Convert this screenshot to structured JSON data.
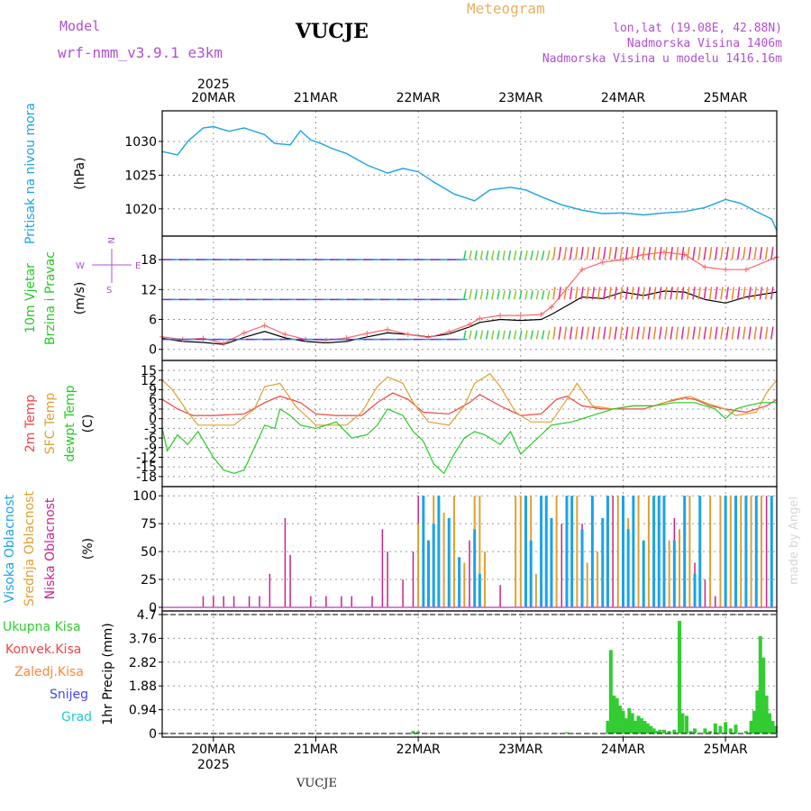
{
  "header": {
    "model_label": "Model",
    "model_name": "wrf-nmm_v3.9.1 e3km",
    "station": "VUCJE",
    "app_title": "Meteogram",
    "lonlat": "lon,lat (19.08E, 42.88N)",
    "altitude": "Nadmorska Visina 1406m",
    "model_altitude": "Nadmorska Visina u modelu 1416.16m",
    "footer_station": "VUCJE",
    "watermark": "made by Angel",
    "year": "2025"
  },
  "colors": {
    "pressure": "#1aa3e8",
    "wind": "#22cc22",
    "gust": "#ff6666",
    "temp2m": "#ee4444",
    "sfc": "#e0a030",
    "dew": "#22cc22",
    "high": "#1aa3e8",
    "mid": "#e0a030",
    "low": "#cc2288",
    "precip": "#33cc33",
    "conv": "#ee4444",
    "ice": "#ff8833",
    "snow": "#4444ee",
    "hail": "#22cccc",
    "purple": "#b050d0"
  },
  "chart_data": {
    "type": "meteogram",
    "x_axis": {
      "unit": "day",
      "range": [
        -0.5,
        5.5
      ],
      "top_labels": [
        "20MAR",
        "21MAR",
        "22MAR",
        "23MAR",
        "24MAR",
        "25MAR"
      ],
      "bottom_labels": [
        "20MAR",
        "21MAR",
        "22MAR",
        "23MAR",
        "24MAR",
        "25MAR"
      ],
      "positions": [
        0,
        1,
        2,
        3,
        4,
        5
      ]
    },
    "panels": [
      {
        "id": "pressure",
        "ylabels": [
          "Pritisak na nivou mora",
          "(hPa)"
        ],
        "ylim": [
          1016.5,
          1034
        ],
        "yticks": [
          1020,
          1025,
          1030
        ],
        "series": [
          {
            "name": "MSLP",
            "x": [
              -0.5,
              -0.35,
              -0.25,
              -0.1,
              0,
              0.15,
              0.3,
              0.5,
              0.6,
              0.75,
              0.85,
              0.95,
              1.05,
              1.15,
              1.3,
              1.5,
              1.7,
              1.85,
              2.0,
              2.15,
              2.35,
              2.55,
              2.7,
              2.9,
              3.05,
              3.2,
              3.4,
              3.6,
              3.8,
              4.0,
              4.2,
              4.4,
              4.6,
              4.8,
              5.0,
              5.15,
              5.3,
              5.45,
              5.5
            ],
            "y": [
              1028.5,
              1028,
              1030,
              1032,
              1032.2,
              1031.5,
              1032,
              1031,
              1029.7,
              1029.5,
              1031.6,
              1030.2,
              1029.7,
              1029,
              1028.2,
              1026.5,
              1025.3,
              1026,
              1025.5,
              1024,
              1022.2,
              1021.2,
              1022.8,
              1023.2,
              1022.8,
              1021.8,
              1020.6,
              1019.8,
              1019.3,
              1019.4,
              1019.1,
              1019.4,
              1019.6,
              1020.2,
              1021.4,
              1020.8,
              1019.6,
              1018.5,
              1016.8
            ]
          }
        ]
      },
      {
        "id": "wind",
        "ylabels": [
          "10m Vjetar",
          "Brzina i Pravac",
          "(m/s)"
        ],
        "ylim": [
          -1.5,
          22
        ],
        "yticks": [
          0,
          6,
          12,
          18
        ],
        "compass": [
          "N",
          "E",
          "S",
          "W"
        ],
        "series": [
          {
            "name": "wind_speed",
            "x": [
              -0.5,
              -0.3,
              -0.1,
              0.1,
              0.3,
              0.5,
              0.7,
              0.9,
              1.1,
              1.3,
              1.5,
              1.7,
              1.9,
              2.1,
              2.3,
              2.5,
              2.6,
              2.8,
              3.0,
              3.2,
              3.3,
              3.6,
              3.8,
              4.0,
              4.2,
              4.4,
              4.6,
              4.8,
              5.0,
              5.2,
              5.5
            ],
            "y": [
              2.2,
              1.6,
              1.4,
              1.0,
              2.4,
              3.6,
              2.3,
              1.6,
              1.3,
              1.6,
              2.5,
              3.3,
              3.0,
              2.5,
              3.1,
              4.5,
              5.4,
              6.0,
              5.8,
              6.0,
              7.0,
              10.5,
              10.2,
              11.5,
              10.8,
              11.7,
              11.5,
              10.0,
              9.3,
              10.5,
              11.5
            ]
          },
          {
            "name": "gust",
            "x": [
              -0.5,
              -0.3,
              -0.1,
              0.1,
              0.3,
              0.5,
              0.7,
              0.9,
              1.1,
              1.3,
              1.5,
              1.7,
              1.9,
              2.1,
              2.3,
              2.5,
              2.6,
              2.8,
              3.0,
              3.2,
              3.3,
              3.6,
              3.8,
              4.0,
              4.2,
              4.4,
              4.6,
              4.8,
              5.0,
              5.2,
              5.5
            ],
            "y": [
              2.5,
              2.0,
              2.2,
              1.2,
              3.3,
              4.8,
              3.0,
              2.0,
              1.8,
              2.3,
              3.2,
              4.0,
              3.0,
              2.4,
              3.5,
              5.0,
              6.2,
              6.8,
              6.8,
              7.0,
              8.5,
              16.0,
              17.5,
              18.0,
              19.0,
              19.5,
              19.0,
              16.5,
              16.0,
              16.0,
              18.5
            ]
          }
        ]
      },
      {
        "id": "temperature",
        "ylabels": [
          "2m Temp",
          "SFC Temp",
          "dewpt Temp",
          "(C)"
        ],
        "ylim": [
          -20,
          17
        ],
        "yticks": [
          -18,
          -15,
          -12,
          -9,
          -6,
          -3,
          0,
          3,
          6,
          9,
          12,
          15
        ],
        "series": [
          {
            "name": "2m Temp",
            "x": [
              -0.5,
              -0.35,
              -0.2,
              0,
              0.3,
              0.5,
              0.65,
              0.85,
              1.0,
              1.2,
              1.45,
              1.6,
              1.75,
              1.9,
              2.05,
              2.3,
              2.5,
              2.6,
              2.8,
              3.0,
              3.2,
              3.35,
              3.45,
              3.6,
              3.8,
              4.0,
              4.2,
              4.4,
              4.6,
              4.7,
              4.85,
              5.0,
              5.2,
              5.4,
              5.5
            ],
            "y": [
              6,
              3,
              1,
              1,
              1.5,
              5,
              7,
              5,
              1.5,
              1,
              1,
              5,
              8,
              6,
              2,
              1.5,
              5,
              7.5,
              4,
              1,
              1.5,
              6,
              7,
              4,
              3,
              3,
              3,
              5,
              6.5,
              6,
              4,
              3,
              2,
              4,
              6
            ]
          },
          {
            "name": "SFC Temp",
            "x": [
              -0.5,
              -0.4,
              -0.25,
              -0.15,
              0,
              0.2,
              0.4,
              0.5,
              0.65,
              0.8,
              1.0,
              1.1,
              1.3,
              1.45,
              1.6,
              1.7,
              1.85,
              1.95,
              2.1,
              2.3,
              2.45,
              2.55,
              2.7,
              2.8,
              2.95,
              3.1,
              3.3,
              3.45,
              3.55,
              3.7,
              3.9,
              4.1,
              4.3,
              4.5,
              4.65,
              4.8,
              5.0,
              5.1,
              5.3,
              5.4,
              5.5
            ],
            "y": [
              12,
              9,
              2,
              -2,
              -2,
              -2,
              3,
              10,
              11,
              4,
              -2,
              -2,
              -2,
              2,
              10,
              13,
              11,
              5,
              -1,
              -2,
              4,
              11,
              14,
              10,
              2,
              -1,
              -1,
              6,
              11,
              4,
              3,
              4,
              4,
              6,
              7,
              5,
              3,
              1,
              2,
              8,
              12
            ]
          },
          {
            "name": "dewpt Temp",
            "x": [
              -0.5,
              -0.45,
              -0.35,
              -0.25,
              -0.15,
              0,
              0.1,
              0.2,
              0.3,
              0.4,
              0.5,
              0.6,
              0.65,
              0.75,
              0.85,
              1.0,
              1.2,
              1.35,
              1.5,
              1.6,
              1.7,
              1.85,
              1.95,
              2.05,
              2.15,
              2.25,
              2.35,
              2.45,
              2.55,
              2.65,
              2.8,
              2.9,
              3.0,
              3.1,
              3.2,
              3.3,
              3.5,
              3.7,
              3.9,
              4.1,
              4.3,
              4.5,
              4.7,
              4.9,
              5.0,
              5.1,
              5.2,
              5.35,
              5.5
            ],
            "y": [
              -3,
              -10,
              -5,
              -8,
              -4,
              -12,
              -16,
              -17,
              -16,
              -9,
              -2,
              -3,
              3,
              1,
              -2,
              -3,
              -1,
              -6,
              -5,
              -2,
              3,
              1,
              -4,
              -7,
              -14,
              -17,
              -11,
              -6,
              -4,
              -5,
              -8,
              -4,
              -11,
              -8,
              -5,
              -2,
              -1,
              1,
              3,
              4,
              4,
              5,
              5,
              3,
              0,
              3,
              4,
              5,
              5
            ]
          }
        ]
      },
      {
        "id": "clouds",
        "ylabels": [
          "Visoka Oblacnost",
          "Srednja Oblacnost",
          "Niska Oblacnost",
          "(%)"
        ],
        "ylim": [
          0,
          105
        ],
        "yticks": [
          0,
          25,
          50,
          75,
          100
        ],
        "low_bars": {
          "x": [
            -0.1,
            0,
            0.1,
            0.2,
            0.35,
            0.45,
            0.55,
            0.7,
            0.75,
            0.95,
            1.1,
            1.25,
            1.35,
            1.55,
            1.65,
            1.7,
            1.85,
            1.95,
            2.0,
            2.5,
            2.6,
            2.8,
            3.1,
            3.2,
            3.4,
            3.5,
            3.6,
            3.7,
            3.8,
            3.9,
            4.0,
            4.1,
            4.2,
            4.4,
            4.5,
            4.6,
            4.7,
            4.8,
            4.9,
            5.0,
            5.1,
            5.2,
            5.3,
            5.4
          ],
          "values": [
            10,
            10,
            10,
            10,
            10,
            10,
            30,
            80,
            47,
            10,
            10,
            10,
            10,
            10,
            70,
            50,
            25,
            50,
            100,
            60,
            30,
            20,
            45,
            60,
            75,
            30,
            75,
            40,
            20,
            100,
            60,
            20,
            30,
            70,
            80,
            100,
            40,
            25,
            10,
            15,
            100,
            80,
            60,
            100
          ]
        },
        "mid_bars": {
          "x": [
            2.0,
            2.05,
            2.1,
            2.15,
            2.25,
            2.35,
            2.45,
            2.55,
            2.6,
            2.65,
            2.95,
            3.0,
            3.05,
            3.1,
            3.15,
            3.35,
            3.45,
            3.55,
            3.65,
            3.75,
            3.85,
            3.95,
            4.05,
            4.15,
            4.25,
            4.35,
            4.45,
            4.55,
            4.65,
            4.75,
            4.85,
            4.95,
            5.05,
            5.15,
            5.25,
            5.35,
            5.45
          ],
          "values": [
            75,
            100,
            60,
            100,
            85,
            100,
            40,
            100,
            100,
            50,
            100,
            100,
            100,
            100,
            30,
            100,
            100,
            100,
            40,
            50,
            100,
            100,
            80,
            100,
            100,
            100,
            60,
            70,
            100,
            40,
            100,
            100,
            100,
            100,
            100,
            100,
            100
          ]
        },
        "high_bars": {
          "x": [
            2.05,
            2.1,
            2.15,
            2.2,
            2.3,
            2.4,
            2.55,
            2.6,
            3.05,
            3.1,
            3.2,
            3.25,
            3.3,
            3.45,
            3.5,
            3.6,
            3.7,
            3.8,
            3.85,
            4.0,
            4.05,
            4.1,
            4.2,
            4.3,
            4.35,
            4.4,
            4.5,
            4.6,
            4.7,
            4.75,
            5.0,
            5.1,
            5.2,
            5.3,
            5.45
          ],
          "values": [
            100,
            60,
            75,
            100,
            80,
            45,
            70,
            30,
            100,
            60,
            100,
            100,
            80,
            100,
            100,
            70,
            100,
            80,
            100,
            100,
            70,
            100,
            60,
            100,
            100,
            100,
            60,
            100,
            30,
            100,
            100,
            100,
            100,
            100,
            100
          ]
        }
      },
      {
        "id": "precip",
        "ylabels": [
          "Ukupna Kisa",
          "Konvek.Kisa",
          "Zaledj.Kisa",
          "Snijeg",
          "Grad",
          "1hr Precip (mm)"
        ],
        "ylim": [
          0,
          4.7
        ],
        "yticks": [
          0,
          0.94,
          1.88,
          2.82,
          3.76,
          4.7
        ],
        "ytick_labels": [
          "0",
          "0.94",
          "1.88",
          "2.82",
          "3.76",
          "4.7"
        ],
        "bars": {
          "x": [
            1.95,
            2.0,
            3.45,
            3.85,
            3.88,
            3.91,
            3.94,
            3.97,
            4.0,
            4.03,
            4.06,
            4.09,
            4.12,
            4.15,
            4.18,
            4.21,
            4.24,
            4.27,
            4.3,
            4.33,
            4.36,
            4.4,
            4.45,
            4.5,
            4.55,
            4.58,
            4.62,
            4.66,
            4.7,
            4.8,
            4.85,
            4.9,
            4.95,
            5.0,
            5.05,
            5.1,
            5.2,
            5.25,
            5.28,
            5.31,
            5.34,
            5.37,
            5.4,
            5.43,
            5.46,
            5.49
          ],
          "values": [
            0.1,
            0.08,
            0.05,
            0.5,
            3.3,
            1.5,
            1.4,
            1.1,
            0.9,
            0.6,
            1.0,
            0.8,
            0.5,
            0.7,
            0.6,
            0.5,
            0.4,
            0.3,
            0.2,
            0.1,
            0.15,
            0.15,
            0.1,
            0.15,
            4.45,
            0.8,
            0.7,
            0.1,
            0.2,
            0.2,
            0.1,
            0.4,
            0.3,
            0.45,
            0.2,
            0.35,
            0.1,
            0.5,
            0.9,
            1.7,
            3.85,
            3.0,
            1.5,
            0.8,
            0.5,
            0.3
          ]
        }
      }
    ]
  }
}
